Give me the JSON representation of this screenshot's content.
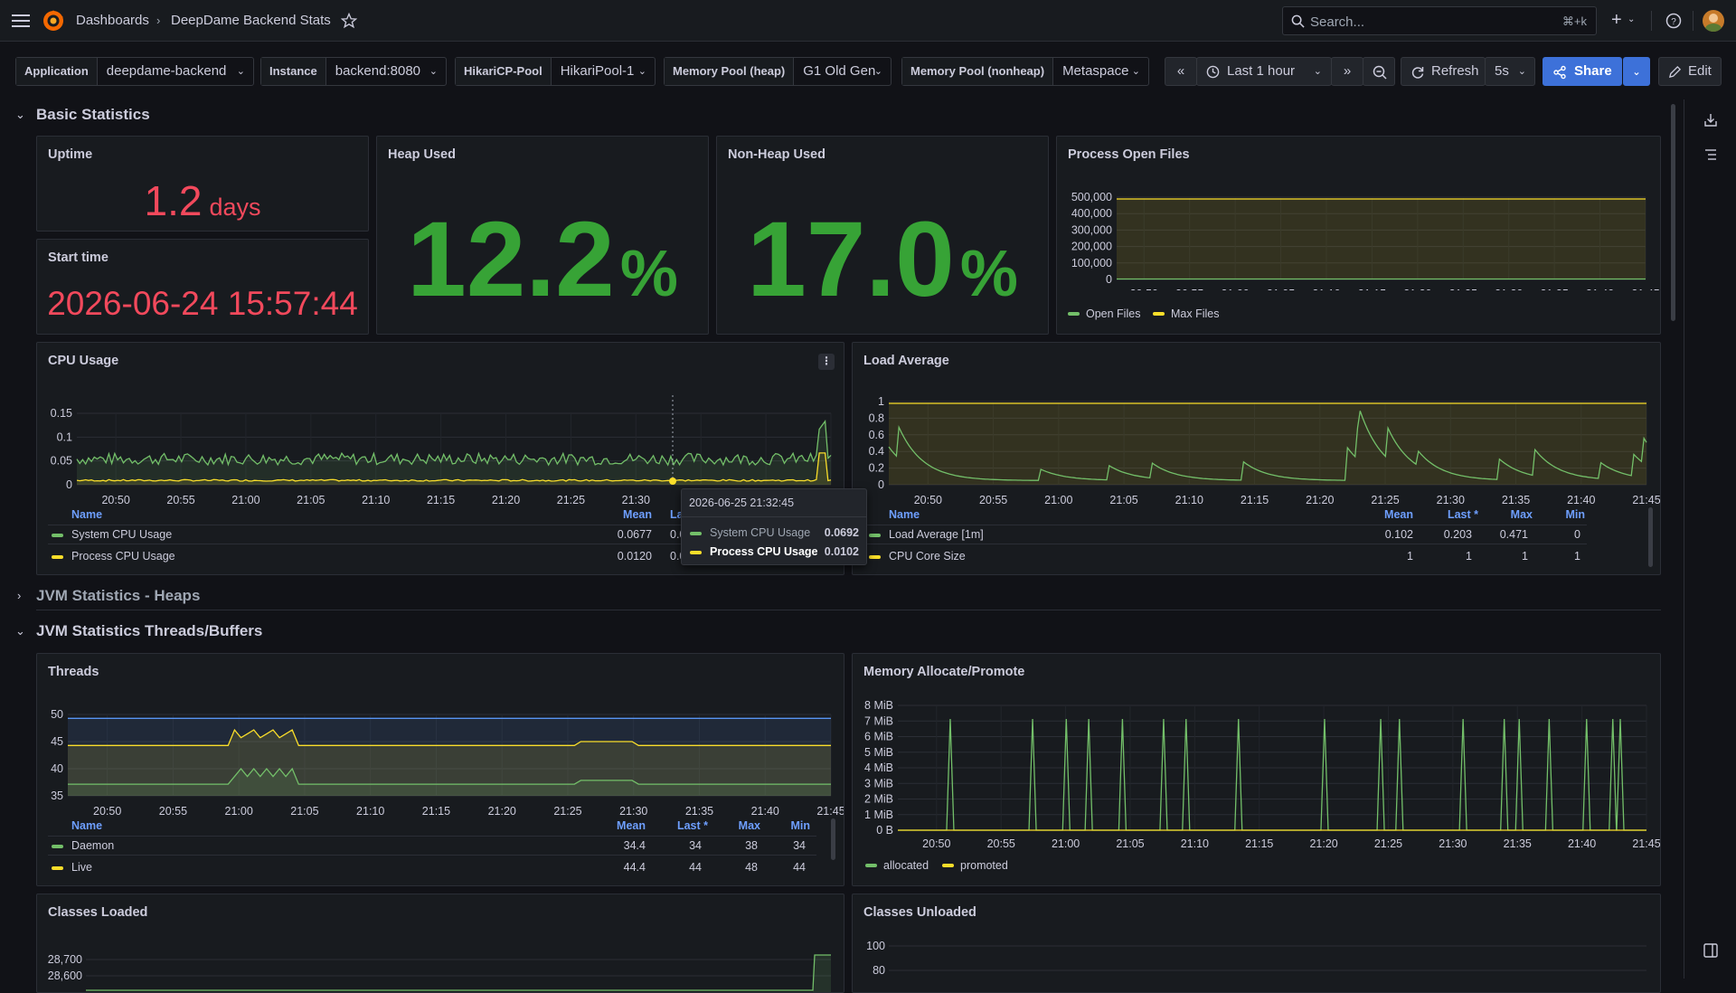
{
  "header": {
    "breadcrumb_root": "Dashboards",
    "breadcrumb_current": "DeepDame Backend Stats",
    "search_placeholder": "Search...",
    "search_shortcut": "⌘+k"
  },
  "variables": [
    {
      "label": "Application",
      "value": "deepdame-backend"
    },
    {
      "label": "Instance",
      "value": "backend:8080"
    },
    {
      "label": "HikariCP-Pool",
      "value": "HikariPool-1"
    },
    {
      "label": "Memory Pool (heap)",
      "value": "G1 Old Gen"
    },
    {
      "label": "Memory Pool (nonheap)",
      "value": "Metaspace"
    }
  ],
  "toolbar": {
    "time_range": "Last 1 hour",
    "refresh_label": "Refresh",
    "refresh_interval": "5s",
    "share_label": "Share",
    "edit_label": "Edit"
  },
  "rows": {
    "basic": "Basic Statistics",
    "jvm_heaps": "JVM Statistics - Heaps",
    "jvm_threads": "JVM Statistics Threads/Buffers"
  },
  "time_ticks": [
    "20:50",
    "20:55",
    "21:00",
    "21:05",
    "21:10",
    "21:15",
    "21:20",
    "21:25",
    "21:30",
    "21:35",
    "21:40",
    "21:45"
  ],
  "panels": {
    "uptime": {
      "title": "Uptime",
      "value": "1.2",
      "unit": "days"
    },
    "start_time": {
      "title": "Start time",
      "value": "2026-06-24 15:57:44"
    },
    "heap_used": {
      "title": "Heap Used",
      "value": "12.2",
      "unit": "%"
    },
    "nonheap_used": {
      "title": "Non-Heap Used",
      "value": "17.0",
      "unit": "%"
    },
    "open_files": {
      "title": "Process Open Files",
      "y_ticks": [
        "500,000",
        "400,000",
        "300,000",
        "200,000",
        "100,000",
        "0"
      ],
      "legend": [
        "Open Files",
        "Max Files"
      ]
    },
    "cpu": {
      "title": "CPU Usage",
      "y_ticks": [
        "0.15",
        "0.1",
        "0.05",
        "0"
      ],
      "legend_headers": [
        "Name",
        "Mean",
        "Last *",
        "Max",
        "Min"
      ],
      "rows": [
        {
          "name": "System CPU Usage",
          "mean": "0.0677",
          "last": "0.0"
        },
        {
          "name": "Process CPU Usage",
          "mean": "0.0120",
          "last": "0.0"
        }
      ]
    },
    "load": {
      "title": "Load Average",
      "y_ticks": [
        "1",
        "0.8",
        "0.6",
        "0.4",
        "0.2",
        "0"
      ],
      "legend_headers": [
        "Name",
        "Mean",
        "Last *",
        "Max",
        "Min"
      ],
      "rows": [
        {
          "name": "Load Average [1m]",
          "mean": "0.102",
          "last": "0.203",
          "max": "0.471",
          "min": "0"
        },
        {
          "name": "CPU Core Size",
          "mean": "1",
          "last": "1",
          "max": "1",
          "min": "1"
        }
      ]
    },
    "threads": {
      "title": "Threads",
      "y_ticks": [
        "50",
        "45",
        "40",
        "35"
      ],
      "legend_headers": [
        "Name",
        "Mean",
        "Last *",
        "Max",
        "Min"
      ],
      "rows": [
        {
          "name": "Daemon",
          "mean": "34.4",
          "last": "34",
          "max": "38",
          "min": "34"
        },
        {
          "name": "Live",
          "mean": "44.4",
          "last": "44",
          "max": "48",
          "min": "44"
        }
      ]
    },
    "mem_alloc": {
      "title": "Memory Allocate/Promote",
      "y_ticks": [
        "8 MiB",
        "7 MiB",
        "6 MiB",
        "5 MiB",
        "4 MiB",
        "3 MiB",
        "2 MiB",
        "1 MiB",
        "0 B"
      ],
      "legend": [
        "allocated",
        "promoted"
      ]
    },
    "classes_loaded": {
      "title": "Classes Loaded",
      "y_ticks": [
        "28,700",
        "28,600"
      ]
    },
    "classes_unloaded": {
      "title": "Classes Unloaded",
      "y_ticks": [
        "100",
        "80"
      ]
    }
  },
  "tooltip": {
    "time": "2026-06-25 21:32:45",
    "rows": [
      {
        "name": "System CPU Usage",
        "value": "0.0692"
      },
      {
        "name": "Process CPU Usage",
        "value": "0.0102"
      }
    ]
  },
  "colors": {
    "green": "#73bf69",
    "yellow": "#fade2a",
    "blue": "#5794f2",
    "red": "#f2495c",
    "stat_green": "#37a336"
  }
}
